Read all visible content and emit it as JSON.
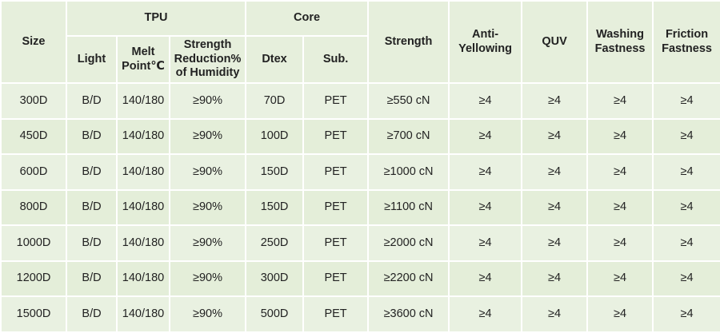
{
  "table": {
    "headers": {
      "size": "Size",
      "tpu_group": "TPU",
      "core_group": "Core",
      "light": "Light",
      "melt_point": "Melt Point℃",
      "strength_reduction": "Strength Reduction% of Humidity",
      "dtex": "Dtex",
      "sub": "Sub.",
      "strength": "Strength",
      "anti_yellowing": "Anti-Yellowing",
      "quv": "QUV",
      "washing_fastness": "Washing Fastness",
      "friction_fastness": "Friction Fastness"
    },
    "rows": [
      {
        "size": "300D",
        "light": "B/D",
        "melt": "140/180",
        "reduction": "≥90%",
        "dtex": "70D",
        "sub": "PET",
        "strength": "≥550 cN",
        "anti_yellowing": "≥4",
        "quv": "≥4",
        "washing": "≥4",
        "friction": "≥4"
      },
      {
        "size": "450D",
        "light": "B/D",
        "melt": "140/180",
        "reduction": "≥90%",
        "dtex": "100D",
        "sub": "PET",
        "strength": "≥700 cN",
        "anti_yellowing": "≥4",
        "quv": "≥4",
        "washing": "≥4",
        "friction": "≥4"
      },
      {
        "size": "600D",
        "light": "B/D",
        "melt": "140/180",
        "reduction": "≥90%",
        "dtex": "150D",
        "sub": "PET",
        "strength": "≥1000 cN",
        "anti_yellowing": "≥4",
        "quv": "≥4",
        "washing": "≥4",
        "friction": "≥4"
      },
      {
        "size": "800D",
        "light": "B/D",
        "melt": "140/180",
        "reduction": "≥90%",
        "dtex": "150D",
        "sub": "PET",
        "strength": "≥1100 cN",
        "anti_yellowing": "≥4",
        "quv": "≥4",
        "washing": "≥4",
        "friction": "≥4"
      },
      {
        "size": "1000D",
        "light": "B/D",
        "melt": "140/180",
        "reduction": "≥90%",
        "dtex": "250D",
        "sub": "PET",
        "strength": "≥2000 cN",
        "anti_yellowing": "≥4",
        "quv": "≥4",
        "washing": "≥4",
        "friction": "≥4"
      },
      {
        "size": "1200D",
        "light": "B/D",
        "melt": "140/180",
        "reduction": "≥90%",
        "dtex": "300D",
        "sub": "PET",
        "strength": "≥2200 cN",
        "anti_yellowing": "≥4",
        "quv": "≥4",
        "washing": "≥4",
        "friction": "≥4"
      },
      {
        "size": "1500D",
        "light": "B/D",
        "melt": "140/180",
        "reduction": "≥90%",
        "dtex": "500D",
        "sub": "PET",
        "strength": "≥3600 cN",
        "anti_yellowing": "≥4",
        "quv": "≥4",
        "washing": "≥4",
        "friction": "≥4"
      }
    ]
  }
}
